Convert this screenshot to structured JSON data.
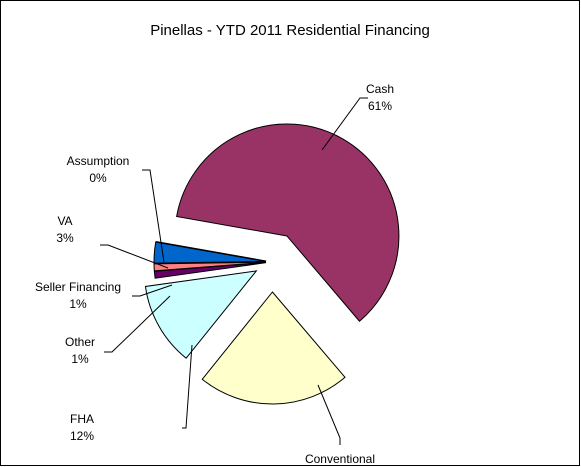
{
  "chart_data": {
    "type": "pie",
    "title": "Pinellas - YTD 2011 Residential Financing",
    "categories": [
      "Cash",
      "Conventional",
      "FHA",
      "Other",
      "Seller Financing",
      "VA",
      "Assumption"
    ],
    "values": [
      61,
      22,
      12,
      1,
      1,
      3,
      0
    ],
    "value_labels": [
      "61%",
      null,
      "12%",
      "1%",
      "1%",
      "3%",
      "0%"
    ],
    "colors": [
      "#993366",
      "#ffffcc",
      "#ccffff",
      "#660066",
      "#ff8080",
      "#0066cc",
      "#ccccff"
    ]
  }
}
